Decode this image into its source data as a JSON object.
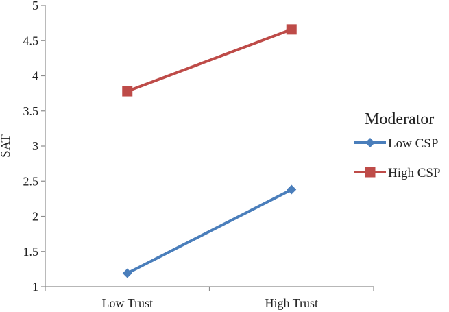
{
  "chart_data": {
    "type": "line",
    "categories": [
      "Low Trust",
      "High Trust"
    ],
    "series": [
      {
        "name": "Low CSP",
        "values": [
          1.19,
          2.38
        ],
        "color": "#4a7ebb",
        "marker": "diamond"
      },
      {
        "name": "High CSP",
        "values": [
          3.78,
          4.66
        ],
        "color": "#be4b48",
        "marker": "square"
      }
    ],
    "ylabel": "SAT",
    "xlabel": "",
    "ylim": [
      1,
      5
    ],
    "yticks": [
      1,
      1.5,
      2,
      2.5,
      3,
      3.5,
      4,
      4.5,
      5
    ],
    "legend": {
      "title": "Moderator",
      "placement": "right"
    },
    "grid": false
  }
}
